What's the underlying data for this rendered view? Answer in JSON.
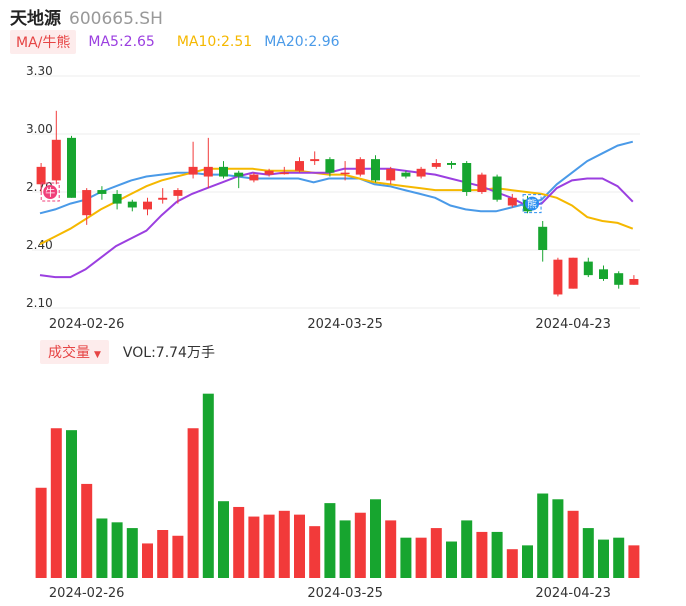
{
  "header": {
    "name": "天地源",
    "code": "600665.SH"
  },
  "ma_legend": {
    "tag": "MA/牛熊",
    "ma5": "MA5:2.65",
    "ma10": "MA10:2.51",
    "ma20": "MA20:2.96",
    "colors": {
      "ma5": "#9b3fe0",
      "ma10": "#f5b800",
      "ma20": "#4a9ae8"
    }
  },
  "volume_legend": {
    "tag": "成交量",
    "value": "VOL:7.74万手"
  },
  "markers": {
    "bull": "牛",
    "bear": "熊"
  },
  "colors": {
    "up": "#f23a3a",
    "down": "#17a52f"
  },
  "chart_data": [
    {
      "type": "candlestick",
      "title": "",
      "ylim": [
        2.1,
        3.3
      ],
      "yticks": [
        "3.30",
        "3.00",
        "2.70",
        "2.40",
        "2.10"
      ],
      "xticks": [
        {
          "index": 3,
          "label": "2024-02-26"
        },
        {
          "index": 20,
          "label": "2024-03-25"
        },
        {
          "index": 35,
          "label": "2024-04-23"
        }
      ],
      "grid": true,
      "candles": [
        {
          "o": 2.74,
          "c": 2.83,
          "h": 2.85,
          "l": 2.7
        },
        {
          "o": 2.76,
          "c": 2.97,
          "h": 3.12,
          "l": 2.74
        },
        {
          "o": 2.98,
          "c": 2.67,
          "h": 2.99,
          "l": 2.67
        },
        {
          "o": 2.58,
          "c": 2.71,
          "h": 2.72,
          "l": 2.53
        },
        {
          "o": 2.71,
          "c": 2.69,
          "h": 2.73,
          "l": 2.66
        },
        {
          "o": 2.69,
          "c": 2.64,
          "h": 2.71,
          "l": 2.61
        },
        {
          "o": 2.65,
          "c": 2.62,
          "h": 2.66,
          "l": 2.6
        },
        {
          "o": 2.61,
          "c": 2.65,
          "h": 2.67,
          "l": 2.58
        },
        {
          "o": 2.66,
          "c": 2.67,
          "h": 2.72,
          "l": 2.64
        },
        {
          "o": 2.68,
          "c": 2.71,
          "h": 2.72,
          "l": 2.64
        },
        {
          "o": 2.79,
          "c": 2.83,
          "h": 2.96,
          "l": 2.77
        },
        {
          "o": 2.78,
          "c": 2.83,
          "h": 2.98,
          "l": 2.72
        },
        {
          "o": 2.83,
          "c": 2.78,
          "h": 2.86,
          "l": 2.77
        },
        {
          "o": 2.8,
          "c": 2.78,
          "h": 2.81,
          "l": 2.72
        },
        {
          "o": 2.76,
          "c": 2.79,
          "h": 2.8,
          "l": 2.75
        },
        {
          "o": 2.79,
          "c": 2.81,
          "h": 2.82,
          "l": 2.78
        },
        {
          "o": 2.8,
          "c": 2.8,
          "h": 2.83,
          "l": 2.79
        },
        {
          "o": 2.81,
          "c": 2.86,
          "h": 2.88,
          "l": 2.8
        },
        {
          "o": 2.86,
          "c": 2.87,
          "h": 2.91,
          "l": 2.84
        },
        {
          "o": 2.87,
          "c": 2.8,
          "h": 2.88,
          "l": 2.78
        },
        {
          "o": 2.8,
          "c": 2.8,
          "h": 2.86,
          "l": 2.76
        },
        {
          "o": 2.79,
          "c": 2.87,
          "h": 2.88,
          "l": 2.78
        },
        {
          "o": 2.87,
          "c": 2.76,
          "h": 2.89,
          "l": 2.75
        },
        {
          "o": 2.76,
          "c": 2.82,
          "h": 2.83,
          "l": 2.74
        },
        {
          "o": 2.8,
          "c": 2.78,
          "h": 2.81,
          "l": 2.77
        },
        {
          "o": 2.78,
          "c": 2.82,
          "h": 2.83,
          "l": 2.77
        },
        {
          "o": 2.83,
          "c": 2.85,
          "h": 2.87,
          "l": 2.82
        },
        {
          "o": 2.85,
          "c": 2.84,
          "h": 2.86,
          "l": 2.82
        },
        {
          "o": 2.85,
          "c": 2.7,
          "h": 2.86,
          "l": 2.68
        },
        {
          "o": 2.7,
          "c": 2.79,
          "h": 2.8,
          "l": 2.69
        },
        {
          "o": 2.78,
          "c": 2.66,
          "h": 2.79,
          "l": 2.65
        },
        {
          "o": 2.63,
          "c": 2.67,
          "h": 2.69,
          "l": 2.62
        },
        {
          "o": 2.66,
          "c": 2.6,
          "h": 2.68,
          "l": 2.59
        },
        {
          "o": 2.52,
          "c": 2.4,
          "h": 2.55,
          "l": 2.34
        },
        {
          "o": 2.17,
          "c": 2.35,
          "h": 2.36,
          "l": 2.16
        },
        {
          "o": 2.2,
          "c": 2.36,
          "h": 2.36,
          "l": 2.2
        },
        {
          "o": 2.34,
          "c": 2.27,
          "h": 2.36,
          "l": 2.26
        },
        {
          "o": 2.3,
          "c": 2.25,
          "h": 2.32,
          "l": 2.24
        },
        {
          "o": 2.28,
          "c": 2.22,
          "h": 2.29,
          "l": 2.2
        },
        {
          "o": 2.22,
          "c": 2.25,
          "h": 2.27,
          "l": 2.22
        }
      ],
      "ma5": [
        2.27,
        2.26,
        2.26,
        2.3,
        2.36,
        2.42,
        2.46,
        2.5,
        2.58,
        2.65,
        2.69,
        2.72,
        2.75,
        2.78,
        2.8,
        2.79,
        2.8,
        2.8,
        2.8,
        2.8,
        2.82,
        2.82,
        2.82,
        2.82,
        2.81,
        2.8,
        2.79,
        2.77,
        2.75,
        2.73,
        2.7,
        2.67,
        2.63,
        2.64,
        2.72,
        2.76,
        2.77,
        2.77,
        2.73,
        2.65
      ],
      "ma10": [
        2.43,
        2.47,
        2.51,
        2.56,
        2.61,
        2.65,
        2.69,
        2.73,
        2.76,
        2.78,
        2.8,
        2.82,
        2.82,
        2.82,
        2.82,
        2.81,
        2.81,
        2.81,
        2.8,
        2.79,
        2.79,
        2.77,
        2.75,
        2.74,
        2.73,
        2.72,
        2.71,
        2.71,
        2.71,
        2.71,
        2.72,
        2.71,
        2.7,
        2.69,
        2.67,
        2.63,
        2.57,
        2.55,
        2.54,
        2.51
      ],
      "ma20": [
        2.59,
        2.61,
        2.64,
        2.66,
        2.7,
        2.73,
        2.76,
        2.78,
        2.79,
        2.8,
        2.8,
        2.79,
        2.79,
        2.78,
        2.77,
        2.77,
        2.77,
        2.77,
        2.75,
        2.77,
        2.77,
        2.77,
        2.74,
        2.73,
        2.71,
        2.69,
        2.67,
        2.63,
        2.61,
        2.6,
        2.6,
        2.62,
        2.64,
        2.66,
        2.74,
        2.8,
        2.86,
        2.9,
        2.94,
        2.96
      ]
    },
    {
      "type": "bar",
      "title": "",
      "ylim": [
        0,
        100
      ],
      "values": [
        47,
        78,
        77,
        49,
        31,
        29,
        26,
        18,
        25,
        22,
        78,
        96,
        40,
        37,
        32,
        33,
        35,
        33,
        27,
        39,
        30,
        34,
        41,
        30,
        21,
        21,
        26,
        19,
        30,
        24,
        24,
        15,
        17,
        44,
        41,
        35,
        26,
        20,
        21,
        17
      ],
      "directions": [
        "up",
        "up",
        "down",
        "up",
        "down",
        "down",
        "down",
        "up",
        "up",
        "up",
        "up",
        "down",
        "down",
        "up",
        "up",
        "up",
        "up",
        "up",
        "up",
        "down",
        "down",
        "up",
        "down",
        "up",
        "down",
        "up",
        "up",
        "down",
        "down",
        "up",
        "down",
        "up",
        "down",
        "down",
        "down",
        "up",
        "down",
        "down",
        "down",
        "up"
      ]
    }
  ]
}
